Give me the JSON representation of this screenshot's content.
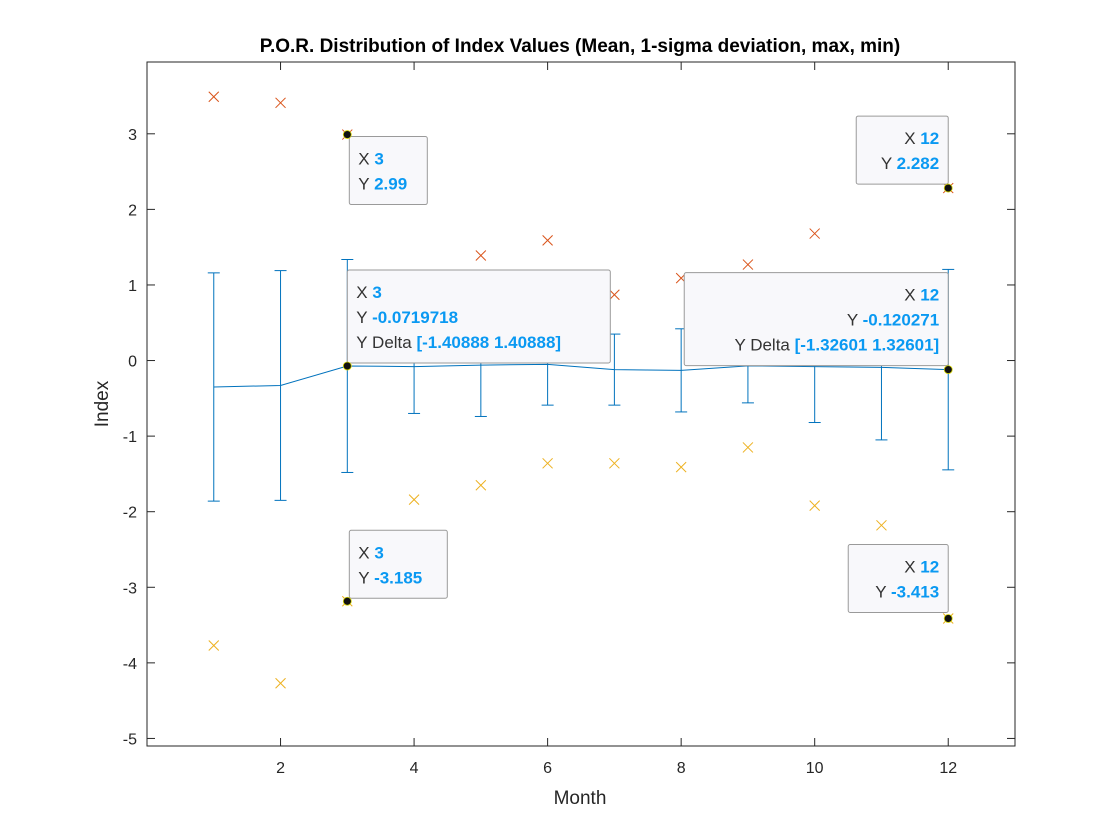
{
  "colors": {
    "mean_line": "#0072BD",
    "max_marker": "#D95319",
    "min_marker": "#EDB120",
    "tip_value": "#0A99F2",
    "axes": "#262626"
  },
  "chart_data": {
    "type": "line",
    "title": "P.O.R. Distribution of Index Values (Mean, 1-sigma deviation, max, min)",
    "xlabel": "Month",
    "ylabel": "Index",
    "xlim": [
      0,
      13
    ],
    "ylim": [
      -5.1,
      3.95
    ],
    "xticks": [
      2,
      4,
      6,
      8,
      10,
      12
    ],
    "yticks": [
      -5,
      -4,
      -3,
      -2,
      -1,
      0,
      1,
      2,
      3
    ],
    "grid": false,
    "series": [
      {
        "kind": "errorbar",
        "x": [
          1,
          2,
          3,
          4,
          5,
          6,
          7,
          8,
          9,
          10,
          11,
          12
        ],
        "mean": [
          -0.35,
          -0.33,
          -0.0719718,
          -0.08,
          -0.06,
          -0.05,
          -0.12,
          -0.13,
          -0.07,
          -0.08,
          -0.09,
          -0.120271
        ],
        "delta": [
          1.51,
          1.52,
          1.40888,
          0.62,
          0.68,
          0.54,
          0.47,
          0.55,
          0.49,
          0.74,
          0.96,
          1.32601
        ]
      },
      {
        "kind": "markers",
        "marker": "x",
        "x": [
          1,
          2,
          3,
          4,
          5,
          6,
          7,
          8,
          9,
          10,
          11,
          12
        ],
        "values": [
          3.49,
          3.41,
          2.99,
          0.98,
          1.39,
          1.59,
          0.87,
          1.09,
          1.27,
          1.68,
          0.95,
          2.282
        ]
      },
      {
        "kind": "markers",
        "marker": "x",
        "x": [
          1,
          2,
          3,
          4,
          5,
          6,
          7,
          8,
          9,
          10,
          11,
          12
        ],
        "values": [
          -3.77,
          -4.27,
          -3.185,
          -1.84,
          -1.65,
          -1.36,
          -1.36,
          -1.41,
          -1.15,
          -1.92,
          -2.18,
          -3.413
        ]
      }
    ],
    "datatips": [
      {
        "x": 3,
        "y": 2.99,
        "rows": [
          {
            "key": "X",
            "val": "3"
          },
          {
            "key": "Y",
            "val": "2.99"
          }
        ]
      },
      {
        "x": 12,
        "y": 2.282,
        "rows": [
          {
            "key": "X",
            "val": "12"
          },
          {
            "key": "Y",
            "val": "2.282"
          }
        ]
      },
      {
        "x": 3,
        "y": -0.0719718,
        "rows": [
          {
            "key": "X",
            "val": "3"
          },
          {
            "key": "Y",
            "val": "-0.0719718"
          },
          {
            "key": "Y Delta",
            "val": "[-1.40888 1.40888]"
          }
        ]
      },
      {
        "x": 12,
        "y": -0.120271,
        "rows": [
          {
            "key": "X",
            "val": "12"
          },
          {
            "key": "Y",
            "val": "-0.120271"
          },
          {
            "key": "Y Delta",
            "val": "[-1.32601 1.32601]"
          }
        ]
      },
      {
        "x": 3,
        "y": -3.185,
        "rows": [
          {
            "key": "X",
            "val": "3"
          },
          {
            "key": "Y",
            "val": "-3.185"
          }
        ]
      },
      {
        "x": 12,
        "y": -3.413,
        "rows": [
          {
            "key": "X",
            "val": "12"
          },
          {
            "key": "Y",
            "val": "-3.413"
          }
        ]
      }
    ]
  }
}
